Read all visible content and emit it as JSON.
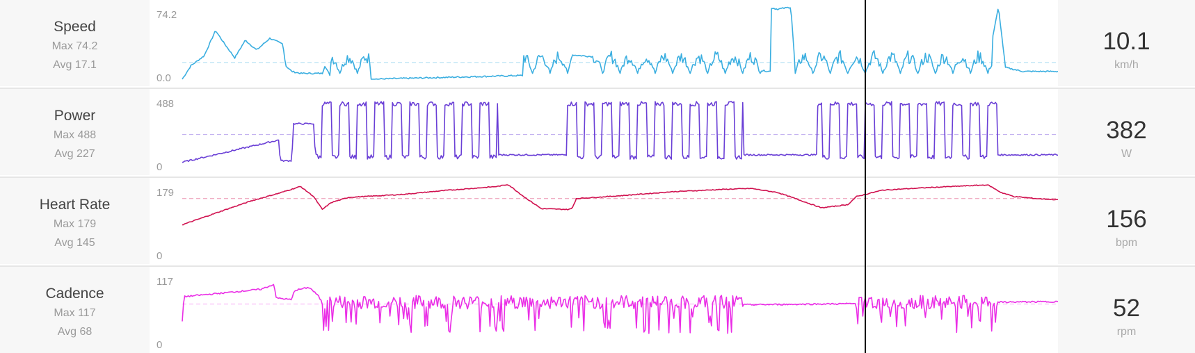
{
  "colors": {
    "speed": "#3aaee0",
    "power": "#6a3fd6",
    "heart_rate": "#d0114f",
    "cadence": "#ea2ee6"
  },
  "rows": [
    {
      "name": "Speed",
      "max": "Max 74.2",
      "avg": "Avg 17.1",
      "tick_top": "74.2",
      "tick_bot": "0.0",
      "current": "10.1",
      "unit": "km/h"
    },
    {
      "name": "Power",
      "max": "Max 488",
      "avg": "Avg 227",
      "tick_top": "488",
      "tick_bot": "0",
      "current": "382",
      "unit": "W"
    },
    {
      "name": "Heart Rate",
      "max": "Max 179",
      "avg": "Avg 145",
      "tick_top": "179",
      "tick_bot": "0",
      "current": "156",
      "unit": "bpm"
    },
    {
      "name": "Cadence",
      "max": "Max 117",
      "avg": "Avg 68",
      "tick_top": "117",
      "tick_bot": "0",
      "current": "52",
      "unit": "rpm"
    }
  ],
  "chart_data": {
    "type": "line",
    "x_range": [
      0,
      1000
    ],
    "cursor_x": 779,
    "series": [
      {
        "name": "Speed",
        "ymax": 74.2,
        "avg": 17.1,
        "points": [
          [
            0,
            0
          ],
          [
            10,
            14
          ],
          [
            25,
            24
          ],
          [
            38,
            50
          ],
          [
            47,
            38
          ],
          [
            60,
            22
          ],
          [
            72,
            40
          ],
          [
            85,
            30
          ],
          [
            100,
            42
          ],
          [
            115,
            36
          ],
          [
            118,
            14
          ],
          [
            125,
            8
          ],
          [
            135,
            6
          ],
          [
            150,
            6
          ],
          [
            160,
            6
          ],
          [
            163,
            14
          ],
          [
            167,
            7
          ],
          [
            170,
            0
          ],
          [
            215,
            0
          ],
          [
            440,
            5
          ],
          [
            445,
            25
          ],
          [
            672,
            8
          ],
          [
            668,
            10
          ],
          [
            665,
            12
          ],
          [
            665,
            70
          ],
          [
            668,
            74
          ],
          [
            680,
            72
          ],
          [
            695,
            74
          ],
          [
            700,
            10
          ],
          [
            720,
            6
          ],
          [
            830,
            8
          ],
          [
            850,
            8
          ],
          [
            860,
            45
          ],
          [
            870,
            20
          ],
          [
            880,
            12
          ],
          [
            890,
            10
          ],
          [
            920,
            18
          ],
          [
            932,
            74
          ],
          [
            940,
            12
          ],
          [
            960,
            8
          ],
          [
            1000,
            8
          ]
        ],
        "band": [
          [
            170,
            215
          ],
          [
            390,
            440
          ],
          [
            470,
            660
          ],
          [
            700,
            850
          ],
          [
            845,
            925
          ]
        ]
      },
      {
        "name": "Power",
        "ymax": 488,
        "avg": 227,
        "points": [
          [
            0,
            40
          ],
          [
            110,
            190
          ],
          [
            112,
            50
          ],
          [
            125,
            50
          ],
          [
            127,
            300
          ],
          [
            150,
            300
          ],
          [
            152,
            90
          ],
          [
            155,
            90
          ],
          [
            1000,
            90
          ]
        ],
        "band": [
          [
            155,
            360
          ],
          [
            440,
            640
          ],
          [
            725,
            930
          ]
        ]
      },
      {
        "name": "Heart Rate",
        "ymax": 179,
        "avg": 145,
        "points": [
          [
            0,
            80
          ],
          [
            50,
            118
          ],
          [
            80,
            140
          ],
          [
            110,
            158
          ],
          [
            135,
            175
          ],
          [
            150,
            150
          ],
          [
            160,
            118
          ],
          [
            170,
            135
          ],
          [
            190,
            148
          ],
          [
            250,
            155
          ],
          [
            300,
            165
          ],
          [
            360,
            175
          ],
          [
            372,
            180
          ],
          [
            390,
            150
          ],
          [
            410,
            120
          ],
          [
            440,
            118
          ],
          [
            445,
            120
          ],
          [
            450,
            145
          ],
          [
            500,
            152
          ],
          [
            560,
            162
          ],
          [
            620,
            168
          ],
          [
            650,
            170
          ],
          [
            680,
            160
          ],
          [
            700,
            145
          ],
          [
            730,
            122
          ],
          [
            760,
            130
          ],
          [
            770,
            150
          ],
          [
            800,
            166
          ],
          [
            850,
            172
          ],
          [
            920,
            179
          ],
          [
            935,
            160
          ],
          [
            950,
            150
          ],
          [
            975,
            145
          ],
          [
            1000,
            142
          ]
        ]
      },
      {
        "name": "Cadence",
        "ymax": 117,
        "avg": 68,
        "points": [
          [
            0,
            40
          ],
          [
            2,
            80
          ],
          [
            40,
            85
          ],
          [
            90,
            92
          ],
          [
            105,
            100
          ],
          [
            107,
            78
          ],
          [
            125,
            75
          ],
          [
            128,
            90
          ],
          [
            145,
            95
          ],
          [
            155,
            82
          ],
          [
            160,
            70
          ],
          [
            170,
            30
          ],
          [
            175,
            60
          ],
          [
            1000,
            72
          ]
        ],
        "band": [
          [
            160,
            640
          ],
          [
            770,
            930
          ]
        ]
      }
    ]
  }
}
